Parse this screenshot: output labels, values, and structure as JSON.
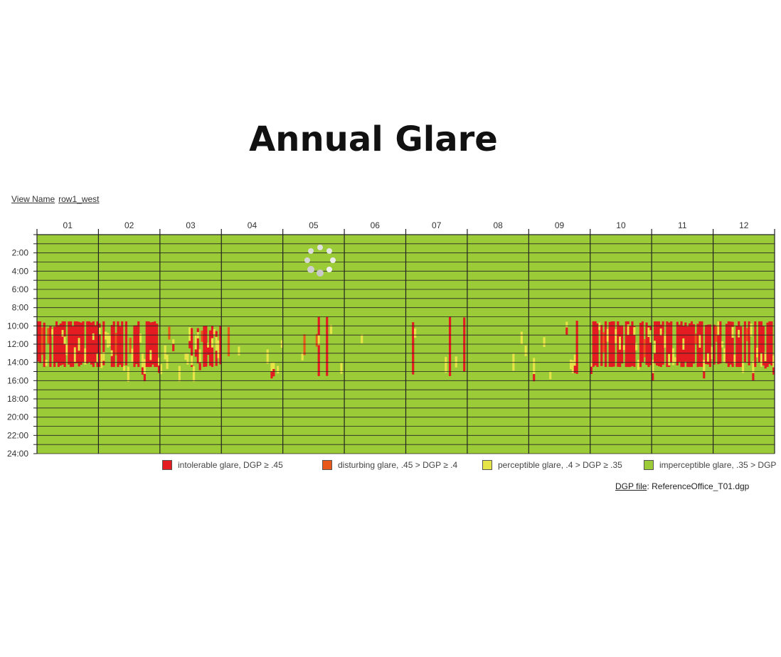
{
  "title": "Annual Glare",
  "view_name_label": "View Name",
  "view_name_value": "row1_west",
  "dgp_file_label": "DGP file",
  "dgp_file_value": ": ReferenceOffice_T01.dgp",
  "colors": {
    "intolerable": "#e41c22",
    "disturbing": "#e8581a",
    "perceptible": "#e6e447",
    "imperceptible": "#9ccb38",
    "grid": "#222222"
  },
  "legend": [
    {
      "key": "intolerable",
      "label": "intolerable glare, DGP ≥ .45"
    },
    {
      "key": "disturbing",
      "label": "disturbing glare, .45 > DGP ≥ .4"
    },
    {
      "key": "perceptible",
      "label": "perceptible glare, .4 > DGP ≥ .35"
    },
    {
      "key": "imperceptible",
      "label": "imperceptible glare, .35 > DGP"
    }
  ],
  "chart_data": {
    "type": "heatmap",
    "title": "Annual Glare",
    "x_tick_labels": [
      "01",
      "02",
      "03",
      "04",
      "05",
      "06",
      "07",
      "08",
      "09",
      "10",
      "11",
      "12"
    ],
    "y_tick_labels": [
      "2:00",
      "4:00",
      "6:00",
      "8:00",
      "10:00",
      "12:00",
      "14:00",
      "16:00",
      "18:00",
      "20:00",
      "22:00",
      "24:00"
    ],
    "ylim": [
      0,
      24
    ],
    "categories": [
      "intolerable",
      "disturbing",
      "perceptible",
      "imperceptible"
    ],
    "default_category": "imperceptible",
    "monthly_glare_hours": [
      {
        "month": "01",
        "hours": [
          9.5,
          14.5
        ],
        "intolerable": 0.7,
        "disturbing": 0.05,
        "perceptible": 0.15
      },
      {
        "month": "02",
        "hours": [
          9.5,
          14.5
        ],
        "intolerable": 0.65,
        "disturbing": 0.05,
        "perceptible": 0.15
      },
      {
        "month": "03",
        "hours": [
          10,
          14.5
        ],
        "intolerable": 0.25,
        "disturbing": 0.05,
        "perceptible": 0.2
      },
      {
        "month": "04",
        "hours": [
          9,
          15
        ],
        "intolerable": 0.03,
        "disturbing": 0.02,
        "perceptible": 0.12
      },
      {
        "month": "05",
        "hours": [
          9,
          15.5
        ],
        "intolerable": 0.03,
        "disturbing": 0.03,
        "perceptible": 0.08
      },
      {
        "month": "06",
        "hours": [
          9,
          15
        ],
        "intolerable": 0.0,
        "disturbing": 0.0,
        "perceptible": 0.04
      },
      {
        "month": "07",
        "hours": [
          9,
          15.5
        ],
        "intolerable": 0.03,
        "disturbing": 0.02,
        "perceptible": 0.07
      },
      {
        "month": "08",
        "hours": [
          9,
          15
        ],
        "intolerable": 0.01,
        "disturbing": 0.01,
        "perceptible": 0.05
      },
      {
        "month": "09",
        "hours": [
          9,
          15.5
        ],
        "intolerable": 0.03,
        "disturbing": 0.02,
        "perceptible": 0.12
      },
      {
        "month": "10",
        "hours": [
          9.5,
          14.5
        ],
        "intolerable": 0.55,
        "disturbing": 0.05,
        "perceptible": 0.12
      },
      {
        "month": "11",
        "hours": [
          9.5,
          14.5
        ],
        "intolerable": 0.7,
        "disturbing": 0.05,
        "perceptible": 0.15
      },
      {
        "month": "12",
        "hours": [
          9.5,
          14.5
        ],
        "intolerable": 0.75,
        "disturbing": 0.05,
        "perceptible": 0.12
      }
    ]
  }
}
